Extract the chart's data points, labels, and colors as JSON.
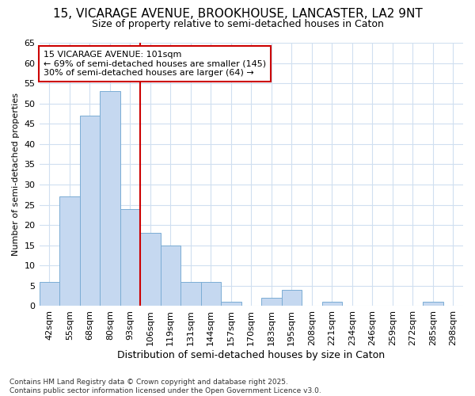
{
  "title1": "15, VICARAGE AVENUE, BROOKHOUSE, LANCASTER, LA2 9NT",
  "title2": "Size of property relative to semi-detached houses in Caton",
  "xlabel": "Distribution of semi-detached houses by size in Caton",
  "ylabel": "Number of semi-detached properties",
  "categories": [
    "42sqm",
    "55sqm",
    "68sqm",
    "80sqm",
    "93sqm",
    "106sqm",
    "119sqm",
    "131sqm",
    "144sqm",
    "157sqm",
    "170sqm",
    "183sqm",
    "195sqm",
    "208sqm",
    "221sqm",
    "234sqm",
    "246sqm",
    "259sqm",
    "272sqm",
    "285sqm",
    "298sqm"
  ],
  "values": [
    6,
    27,
    47,
    53,
    24,
    18,
    15,
    6,
    6,
    1,
    0,
    2,
    4,
    0,
    1,
    0,
    0,
    0,
    0,
    1,
    0
  ],
  "bar_color": "#c5d8f0",
  "bar_edge_color": "#7badd4",
  "vline_color": "#cc0000",
  "vline_x_index": 4.5,
  "annotation_title": "15 VICARAGE AVENUE: 101sqm",
  "annotation_line1": "← 69% of semi-detached houses are smaller (145)",
  "annotation_line2": "30% of semi-detached houses are larger (64) →",
  "annotation_box_color": "#ffffff",
  "annotation_box_edge": "#cc0000",
  "ylim": [
    0,
    65
  ],
  "yticks": [
    0,
    5,
    10,
    15,
    20,
    25,
    30,
    35,
    40,
    45,
    50,
    55,
    60,
    65
  ],
  "footnote1": "Contains HM Land Registry data © Crown copyright and database right 2025.",
  "footnote2": "Contains public sector information licensed under the Open Government Licence v3.0.",
  "background_color": "#ffffff",
  "grid_color": "#d0dff0",
  "title1_fontsize": 11,
  "title2_fontsize": 9,
  "xlabel_fontsize": 9,
  "ylabel_fontsize": 8,
  "tick_fontsize": 8,
  "annot_fontsize": 8,
  "footnote_fontsize": 6.5
}
